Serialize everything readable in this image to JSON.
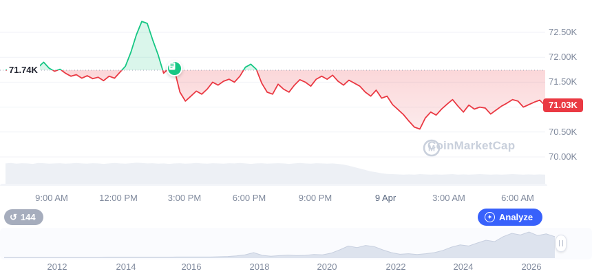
{
  "chart_data": {
    "type": "line",
    "open_price": 71.74,
    "open_price_label": "71.74K",
    "current_price": 71.03,
    "current_price_label": "71.03K",
    "ylim": [
      69.45,
      73.0
    ],
    "grid": "horizontal",
    "legend": "none",
    "line_color_above_open": "#16c784",
    "line_color_below_open": "#ea3943",
    "y_ticks": [
      {
        "value": 72.5,
        "label": "72.50K"
      },
      {
        "value": 72.0,
        "label": "72.00K"
      },
      {
        "value": 71.5,
        "label": "71.50K"
      },
      {
        "value": 70.5,
        "label": "70.50K"
      },
      {
        "value": 70.0,
        "label": "70.00K"
      }
    ],
    "unlabeled_gridlines": [
      71.0
    ],
    "x_ticks": [
      "9:00 AM",
      "12:00 PM",
      "3:00 PM",
      "6:00 PM",
      "9:00 PM",
      "9 Apr",
      "3:00 AM",
      "6:00 AM"
    ],
    "series": [
      {
        "name": "price",
        "values": [
          71.74,
          71.76,
          71.72,
          71.78,
          71.74,
          71.7,
          71.8,
          71.9,
          71.78,
          71.72,
          71.76,
          71.68,
          71.62,
          71.65,
          71.58,
          71.63,
          71.57,
          71.6,
          71.53,
          71.62,
          71.58,
          71.7,
          71.82,
          72.1,
          72.45,
          72.72,
          72.68,
          72.35,
          72.05,
          71.68,
          71.78,
          71.74,
          71.3,
          71.12,
          71.22,
          71.32,
          71.26,
          71.36,
          71.5,
          71.44,
          71.52,
          71.56,
          71.5,
          71.62,
          71.8,
          71.86,
          71.76,
          71.48,
          71.3,
          71.26,
          71.46,
          71.36,
          71.3,
          71.44,
          71.55,
          71.5,
          71.42,
          71.56,
          71.62,
          71.56,
          71.64,
          71.52,
          71.44,
          71.54,
          71.48,
          71.42,
          71.3,
          71.22,
          71.34,
          71.18,
          71.22,
          71.05,
          70.95,
          70.85,
          70.72,
          70.6,
          70.56,
          70.78,
          70.9,
          70.84,
          70.96,
          71.06,
          71.15,
          71.02,
          70.9,
          71.04,
          70.96,
          71.0,
          70.98,
          70.86,
          70.94,
          71.02,
          71.08,
          71.15,
          71.12,
          71.0,
          71.05,
          71.1,
          71.14,
          71.03
        ]
      }
    ],
    "volume_profile_norm": [
      0.9,
      0.92,
      0.89,
      0.91,
      0.9,
      0.88,
      0.92,
      0.91,
      0.89,
      0.9,
      0.91,
      0.89,
      0.9,
      0.92,
      0.9,
      0.89,
      0.91,
      0.9,
      0.88,
      0.9,
      0.92,
      0.9,
      0.89,
      0.91,
      0.93,
      0.92,
      0.9,
      0.91,
      0.89,
      0.9,
      0.88,
      0.9,
      0.91,
      0.89,
      0.9,
      0.92,
      0.9,
      0.89,
      0.91,
      0.9,
      0.89,
      0.91,
      0.9,
      0.92,
      0.9,
      0.88,
      0.9,
      0.91,
      0.89,
      0.9,
      0.91,
      0.9,
      0.88,
      0.9,
      0.92,
      0.9,
      0.89,
      0.91,
      0.9,
      0.89,
      0.9,
      0.88,
      0.85,
      0.8,
      0.74,
      0.68,
      0.62,
      0.56,
      0.52,
      0.48,
      0.45,
      0.44,
      0.43,
      0.42,
      0.43,
      0.42,
      0.44,
      0.43,
      0.42,
      0.43,
      0.42,
      0.43,
      0.44,
      0.42,
      0.43,
      0.42,
      0.43,
      0.44,
      0.43,
      0.42,
      0.43,
      0.42,
      0.43,
      0.44,
      0.43,
      0.42,
      0.43,
      0.42,
      0.43,
      0.42
    ],
    "event_marker": {
      "index": 31,
      "icon": "news-icon",
      "color": "#16c784"
    }
  },
  "mini_chart": {
    "type": "area",
    "x_ticks": [
      "2012",
      "2014",
      "2016",
      "2018",
      "2020",
      "2022",
      "2024",
      "2026"
    ],
    "values_norm": [
      0.02,
      0.02,
      0.02,
      0.02,
      0.02,
      0.02,
      0.02,
      0.02,
      0.02,
      0.02,
      0.02,
      0.02,
      0.03,
      0.03,
      0.03,
      0.03,
      0.03,
      0.03,
      0.03,
      0.03,
      0.04,
      0.04,
      0.04,
      0.04,
      0.04,
      0.05,
      0.06,
      0.08,
      0.12,
      0.2,
      0.1,
      0.07,
      0.09,
      0.11,
      0.09,
      0.1,
      0.13,
      0.12,
      0.18,
      0.3,
      0.44,
      0.38,
      0.46,
      0.42,
      0.3,
      0.2,
      0.14,
      0.16,
      0.13,
      0.16,
      0.2,
      0.28,
      0.4,
      0.48,
      0.44,
      0.55,
      0.65,
      0.6,
      0.78,
      0.9,
      0.84,
      0.95,
      0.82,
      0.88,
      0.78
    ]
  },
  "controls": {
    "history_badge": {
      "count": "144",
      "icon": "history-icon"
    },
    "analyze_button": {
      "label": "Analyze",
      "icon": "ai-sparkle-icon",
      "color": "#3861fb"
    }
  },
  "watermark": {
    "text": "CoinMarketCap",
    "icon": "coinmarketcap-logo-icon"
  },
  "colors": {
    "green": "#16c784",
    "red": "#ea3943",
    "blue": "#3861fb",
    "axis_text": "#808a9d",
    "dark_text": "#222531",
    "grid": "#f0f2f7",
    "volume_fill": "#edf0f5",
    "mini_fill": "#dde3ee",
    "badge_bg": "#a6adbd",
    "watermark": "#c9d0dc"
  }
}
